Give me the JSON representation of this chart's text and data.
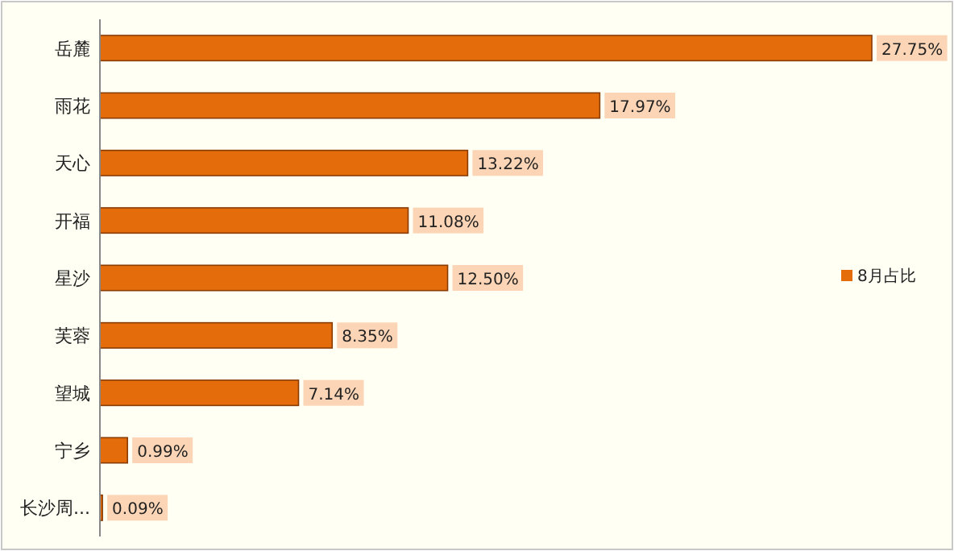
{
  "chart_data": {
    "type": "bar",
    "orientation": "horizontal",
    "categories": [
      "岳麓",
      "雨花",
      "天心",
      "开福",
      "星沙",
      "芙蓉",
      "望城",
      "宁乡",
      "长沙周..."
    ],
    "series": [
      {
        "name": "8月占比",
        "color": "#e46c0a",
        "values": [
          27.75,
          17.97,
          13.22,
          11.08,
          12.5,
          8.35,
          7.14,
          0.99,
          0.09
        ],
        "value_labels": [
          "27.75%",
          "17.97%",
          "13.22%",
          "11.08%",
          "12.50%",
          "8.35%",
          "7.14%",
          "0.99%",
          "0.09%"
        ]
      }
    ],
    "tick_labels": "y",
    "legend": "right",
    "grid": false
  }
}
